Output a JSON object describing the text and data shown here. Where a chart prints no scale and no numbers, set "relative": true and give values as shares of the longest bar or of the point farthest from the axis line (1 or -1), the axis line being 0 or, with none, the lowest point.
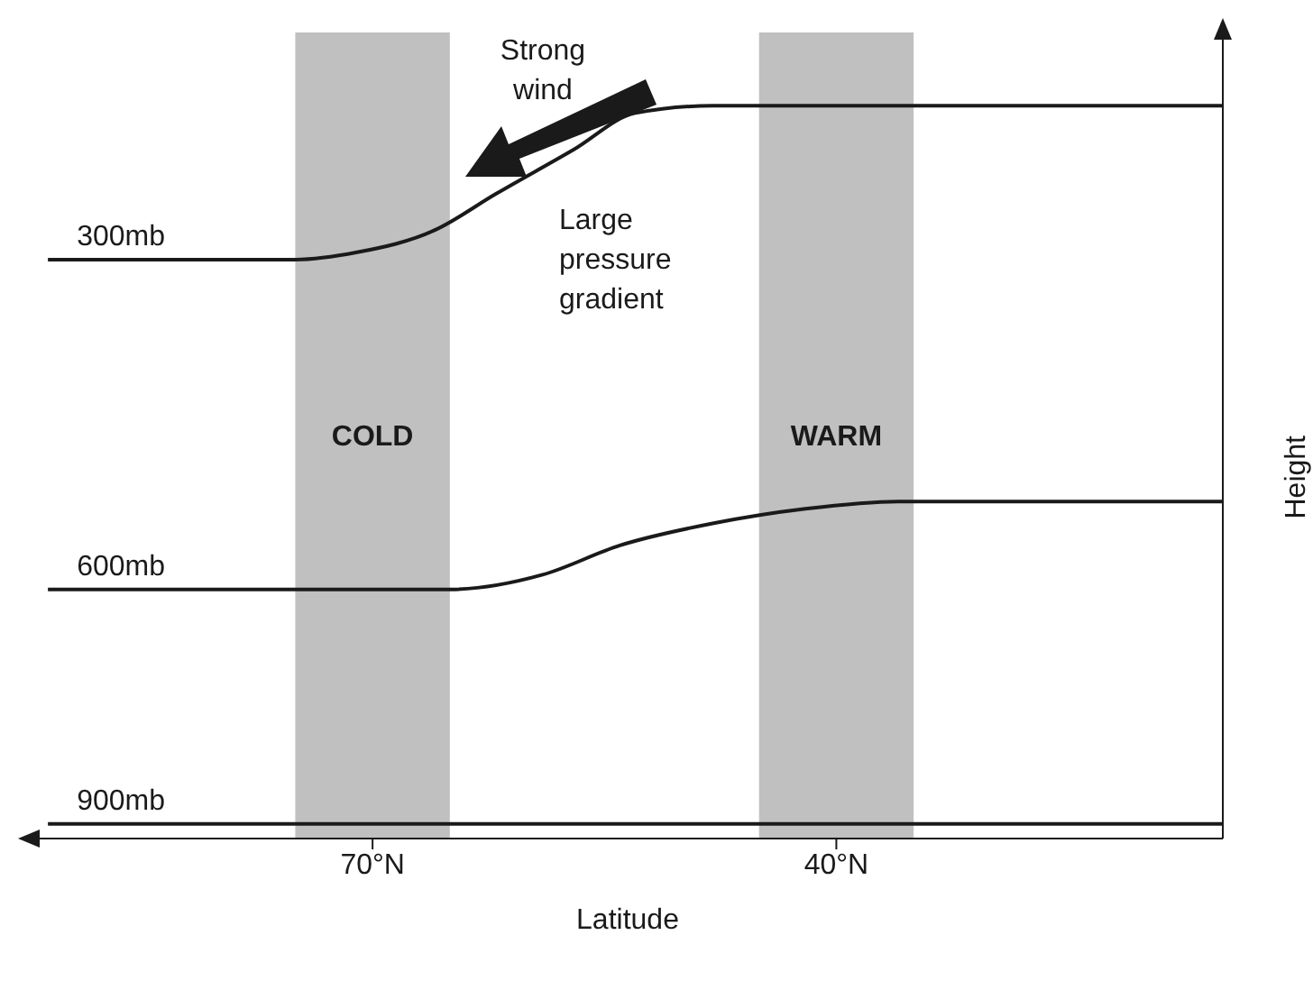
{
  "chart_data": {
    "type": "line",
    "relative": true,
    "xlabel": "Latitude",
    "ylabel": "Height",
    "xlim": [
      92,
      15
    ],
    "xticks": [
      {
        "value": 70,
        "label": "70°N"
      },
      {
        "value": 40,
        "label": "40°N"
      }
    ],
    "series": [
      {
        "name": "300mb",
        "color": "#1a1a1a",
        "x": [
          91,
          75,
          71,
          66,
          62,
          57,
          53,
          48,
          45,
          15
        ],
        "values": [
          0.79,
          0.79,
          0.8,
          0.83,
          0.88,
          0.94,
          0.99,
          1,
          1,
          1
        ]
      },
      {
        "name": "600mb",
        "color": "#1a1a1a",
        "x": [
          91,
          65,
          59,
          54,
          48,
          42,
          36,
          15
        ],
        "values": [
          0.34,
          0.34,
          0.36,
          0.4,
          0.43,
          0.45,
          0.46,
          0.46
        ]
      },
      {
        "name": "900mb",
        "color": "#1a1a1a",
        "x": [
          91,
          15
        ],
        "values": [
          0.02,
          0.02
        ]
      }
    ],
    "bands": [
      {
        "axis": "x",
        "from": 75,
        "to": 65,
        "label": "COLD",
        "color": "#c0c0c0"
      },
      {
        "axis": "x",
        "from": 45,
        "to": 35,
        "label": "WARM",
        "color": "#c0c0c0"
      }
    ],
    "annotations": [
      "Strong wind",
      "Large pressure gradient"
    ]
  }
}
